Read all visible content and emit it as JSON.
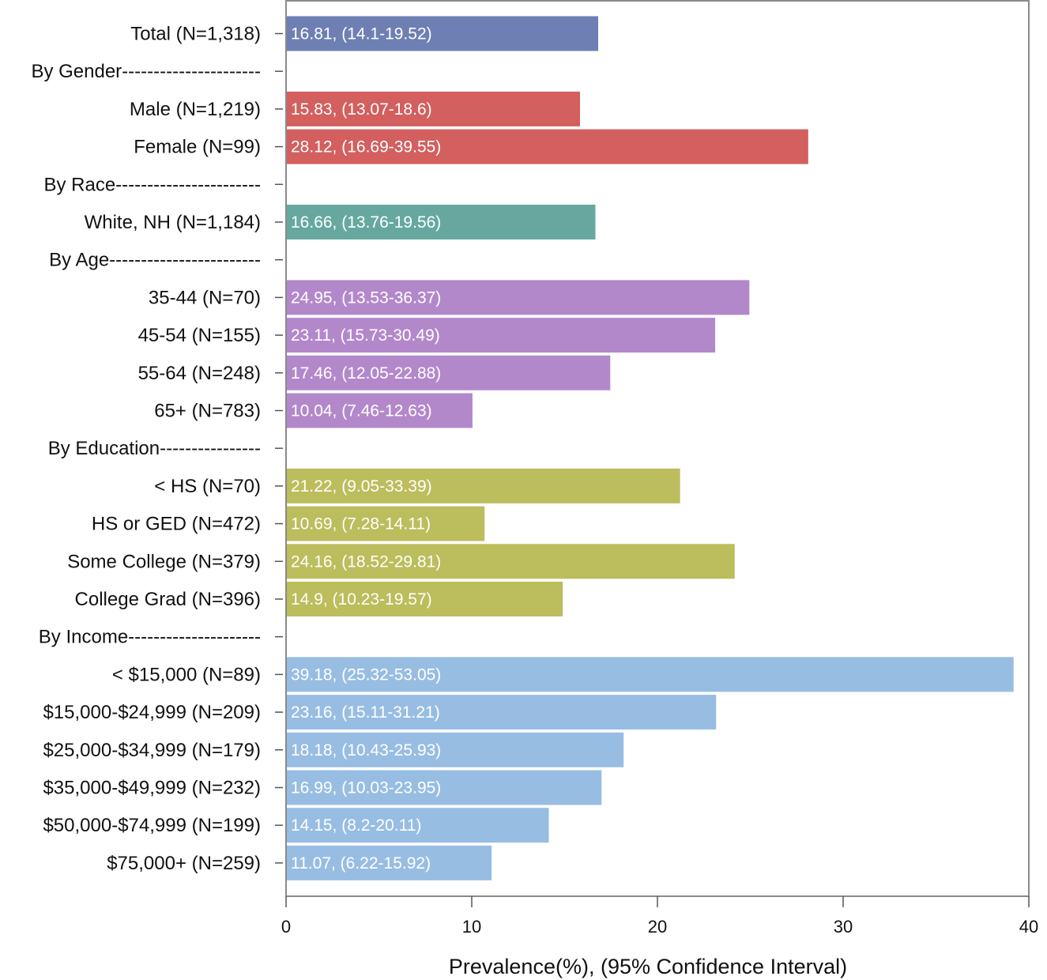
{
  "chart_data": {
    "type": "bar",
    "orientation": "horizontal",
    "xlabel": "Prevalence(%), (95% Confidence Interval)",
    "xlim": [
      0,
      40
    ],
    "xticks": [
      0,
      10,
      20,
      30,
      40
    ],
    "grid": false,
    "rows": [
      {
        "label": "Total (N=1,318)",
        "value": 16.81,
        "text": "16.81, (14.1-19.52)",
        "color": "#6e7fb3"
      },
      {
        "label": "By Gender----------------------",
        "value": null,
        "text": ""
      },
      {
        "label": "Male (N=1,219)",
        "value": 15.83,
        "text": "15.83, (13.07-18.6)",
        "color": "#d35f5f"
      },
      {
        "label": "Female (N=99)",
        "value": 28.12,
        "text": "28.12, (16.69-39.55)",
        "color": "#d35f5f"
      },
      {
        "label": "By Race-----------------------",
        "value": null,
        "text": ""
      },
      {
        "label": "White, NH (N=1,184)",
        "value": 16.66,
        "text": "16.66, (13.76-19.56)",
        "color": "#66a8a0"
      },
      {
        "label": "By Age------------------------",
        "value": null,
        "text": ""
      },
      {
        "label": "35-44 (N=70)",
        "value": 24.95,
        "text": "24.95, (13.53-36.37)",
        "color": "#b388cb"
      },
      {
        "label": "45-54 (N=155)",
        "value": 23.11,
        "text": "23.11, (15.73-30.49)",
        "color": "#b388cb"
      },
      {
        "label": "55-64 (N=248)",
        "value": 17.46,
        "text": "17.46, (12.05-22.88)",
        "color": "#b388cb"
      },
      {
        "label": "65+ (N=783)",
        "value": 10.04,
        "text": "10.04, (7.46-12.63)",
        "color": "#b388cb"
      },
      {
        "label": "By Education----------------",
        "value": null,
        "text": ""
      },
      {
        "label": "< HS (N=70)",
        "value": 21.22,
        "text": "21.22, (9.05-33.39)",
        "color": "#bcbd5c"
      },
      {
        "label": "HS or GED (N=472)",
        "value": 10.69,
        "text": "10.69, (7.28-14.11)",
        "color": "#bcbd5c"
      },
      {
        "label": "Some College (N=379)",
        "value": 24.16,
        "text": "24.16, (18.52-29.81)",
        "color": "#bcbd5c"
      },
      {
        "label": "College Grad (N=396)",
        "value": 14.9,
        "text": "14.9, (10.23-19.57)",
        "color": "#bcbd5c"
      },
      {
        "label": "By Income---------------------",
        "value": null,
        "text": ""
      },
      {
        "label": "< $15,000 (N=89)",
        "value": 39.18,
        "text": "39.18, (25.32-53.05)",
        "color": "#98bde3"
      },
      {
        "label": "$15,000-$24,999 (N=209)",
        "value": 23.16,
        "text": "23.16, (15.11-31.21)",
        "color": "#98bde3"
      },
      {
        "label": "$25,000-$34,999 (N=179)",
        "value": 18.18,
        "text": "18.18, (10.43-25.93)",
        "color": "#98bde3"
      },
      {
        "label": "$35,000-$49,999 (N=232)",
        "value": 16.99,
        "text": "16.99, (10.03-23.95)",
        "color": "#98bde3"
      },
      {
        "label": "$50,000-$74,999 (N=199)",
        "value": 14.15,
        "text": "14.15, (8.2-20.11)",
        "color": "#98bde3"
      },
      {
        "label": "$75,000+ (N=259)",
        "value": 11.07,
        "text": "11.07, (6.22-15.92)",
        "color": "#98bde3"
      }
    ]
  }
}
